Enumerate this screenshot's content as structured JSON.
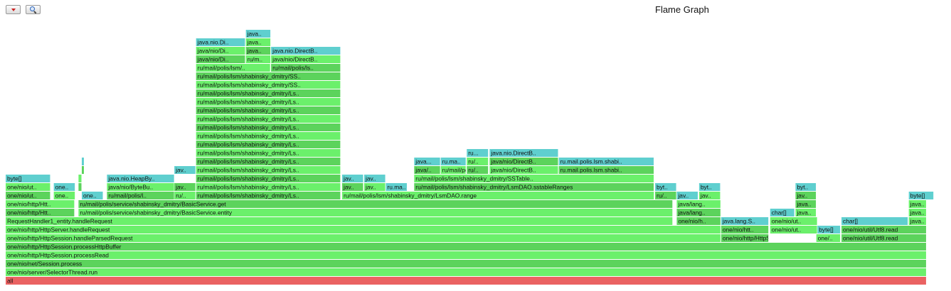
{
  "toolbar": {
    "reverse_icon": "triangle-down-icon",
    "search_icon": "magnifier-icon"
  },
  "chart_data": {
    "type": "flamegraph",
    "title": "Flame Graph",
    "units": "samples (x in % of total, w in % of total, depth = stack level)",
    "colors": {
      "root": "#ea6262",
      "java": "#5cd35c",
      "java_alt": "#6bf06b",
      "alloc": "#5fcfcf",
      "light": "#79f779"
    },
    "frames": [
      {
        "d": 0,
        "x": 0.0,
        "w": 98.4,
        "t": "all",
        "c": "root"
      },
      {
        "d": 1,
        "x": 0.0,
        "w": 98.4,
        "t": "one/nio/server/SelectorThread.run",
        "c": "java_alt"
      },
      {
        "d": 2,
        "x": 0.0,
        "w": 98.4,
        "t": "one/nio/net/Session.process",
        "c": "java"
      },
      {
        "d": 3,
        "x": 0.0,
        "w": 98.4,
        "t": "one/nio/http/HttpSession.processRead",
        "c": "java_alt"
      },
      {
        "d": 4,
        "x": 0.0,
        "w": 98.4,
        "t": "one/nio/http/HttpSession.processHttpBuffer",
        "c": "java"
      },
      {
        "d": 5,
        "x": 0.0,
        "w": 76.43,
        "t": "one/nio/http/HttpSession.handleParsedRequest",
        "c": "java_alt"
      },
      {
        "d": 5,
        "x": 76.43,
        "w": 5.12,
        "t": "one/nio/http/HttpSession..",
        "c": "java"
      },
      {
        "d": 5,
        "x": 86.6,
        "w": 2.62,
        "t": "one/..",
        "c": "java_alt"
      },
      {
        "d": 5,
        "x": 89.29,
        "w": 9.11,
        "t": "one/nio/util/Utf8.read",
        "c": "java"
      },
      {
        "d": 6,
        "x": 0.0,
        "w": 76.43,
        "t": "one/nio/http/HttpServer.handleRequest",
        "c": "java_alt"
      },
      {
        "d": 6,
        "x": 76.43,
        "w": 5.12,
        "t": "one/nio/htt..",
        "c": "java"
      },
      {
        "d": 6,
        "x": 81.67,
        "w": 5.08,
        "t": "one/nio/ut..",
        "c": "java_alt"
      },
      {
        "d": 6,
        "x": 86.72,
        "w": 2.5,
        "t": "byte[]",
        "c": "alloc"
      },
      {
        "d": 6,
        "x": 89.29,
        "w": 9.11,
        "t": "one/nio/util/Utf8.read",
        "c": "java"
      },
      {
        "d": 7,
        "x": 0.0,
        "w": 71.3,
        "t": "RequestHandler1_entity.handleRequest",
        "c": "java_alt"
      },
      {
        "d": 7,
        "x": 71.69,
        "w": 4.74,
        "t": "one/nio/h..",
        "c": "java"
      },
      {
        "d": 7,
        "x": 76.43,
        "w": 5.12,
        "t": "java.lang.S..",
        "c": "alloc"
      },
      {
        "d": 7,
        "x": 81.67,
        "w": 5.08,
        "t": "one/nio/ut..",
        "c": "java_alt"
      },
      {
        "d": 7,
        "x": 89.29,
        "w": 7.15,
        "t": "char[]",
        "c": "alloc"
      },
      {
        "d": 7,
        "x": 96.48,
        "w": 1.92,
        "t": "java..",
        "c": "java_alt"
      },
      {
        "d": 8,
        "x": 0.0,
        "w": 7.4,
        "t": "one/nio/http/Htt..",
        "c": "java"
      },
      {
        "d": 8,
        "x": 7.78,
        "w": 63.52,
        "t": "ru/mail/polis/service/shabinsky_dmitry/BasicService.entity",
        "c": "java_alt"
      },
      {
        "d": 8,
        "x": 71.69,
        "w": 4.74,
        "t": "java/lang..",
        "c": "java"
      },
      {
        "d": 8,
        "x": 81.67,
        "w": 2.65,
        "t": "char[]",
        "c": "alloc"
      },
      {
        "d": 8,
        "x": 84.38,
        "w": 2.25,
        "t": "java..",
        "c": "java_alt"
      },
      {
        "d": 8,
        "x": 96.48,
        "w": 1.92,
        "t": "java..",
        "c": "java_alt"
      },
      {
        "d": 9,
        "x": 0.0,
        "w": 7.4,
        "t": "one/nio/http/Htt..",
        "c": "java_alt"
      },
      {
        "d": 9,
        "x": 7.78,
        "w": 63.52,
        "t": "ru/mail/polis/service/shabinsky_dmitry/BasicService.get",
        "c": "java"
      },
      {
        "d": 9,
        "x": 71.69,
        "w": 4.74,
        "t": "java/lang..",
        "c": "java_alt"
      },
      {
        "d": 9,
        "x": 84.38,
        "w": 2.25,
        "t": "java..",
        "c": "java"
      },
      {
        "d": 9,
        "x": 96.48,
        "w": 1.92,
        "t": "java..",
        "c": "java_alt"
      },
      {
        "d": 10,
        "x": 0.0,
        "w": 4.82,
        "t": "one/nio/ut..",
        "c": "java"
      },
      {
        "d": 10,
        "x": 5.14,
        "w": 2.32,
        "t": "one..",
        "c": "java_alt"
      },
      {
        "d": 10,
        "x": 8.13,
        "w": 2.32,
        "t": "one..",
        "c": "alloc"
      },
      {
        "d": 10,
        "x": 10.82,
        "w": 7.24,
        "t": "ru/mail/polis/l..",
        "c": "java"
      },
      {
        "d": 10,
        "x": 18.02,
        "w": 2.32,
        "t": "ru/..",
        "c": "java_alt"
      },
      {
        "d": 10,
        "x": 20.34,
        "w": 15.48,
        "t": "ru/mail/polis/lsm/shabinsky_dmitry/Ls..",
        "c": "java"
      },
      {
        "d": 10,
        "x": 35.94,
        "w": 33.38,
        "t": "ru/mail/polis/lsm/shabinsky_dmitry/LsmDAO.range",
        "c": "java_alt"
      },
      {
        "d": 10,
        "x": 69.38,
        "w": 2.32,
        "t": "ru/..",
        "c": "java"
      },
      {
        "d": 10,
        "x": 71.69,
        "w": 2.32,
        "t": "jav..",
        "c": "alloc"
      },
      {
        "d": 10,
        "x": 74.08,
        "w": 2.32,
        "t": "jav..",
        "c": "java_alt"
      },
      {
        "d": 10,
        "x": 84.38,
        "w": 2.25,
        "t": "jav..",
        "c": "java"
      },
      {
        "d": 10,
        "x": 96.48,
        "w": 2.7,
        "t": "byte[]",
        "c": "alloc"
      },
      {
        "d": 11,
        "x": 0.0,
        "w": 4.82,
        "t": "one/nio/ut..",
        "c": "java_alt"
      },
      {
        "d": 11,
        "x": 5.14,
        "w": 2.32,
        "t": "one..",
        "c": "alloc"
      },
      {
        "d": 11,
        "x": 7.78,
        "w": 0.39,
        "t": "",
        "c": "java"
      },
      {
        "d": 11,
        "x": 10.82,
        "w": 7.24,
        "t": "java/nio/ByteBu..",
        "c": "java_alt"
      },
      {
        "d": 11,
        "x": 18.02,
        "w": 2.32,
        "t": "jav..",
        "c": "java"
      },
      {
        "d": 11,
        "x": 20.34,
        "w": 15.48,
        "t": "ru/mail/polis/lsm/shabinsky_dmitry/Ls..",
        "c": "java_alt"
      },
      {
        "d": 11,
        "x": 35.94,
        "w": 2.32,
        "t": "jav..",
        "c": "java"
      },
      {
        "d": 11,
        "x": 38.3,
        "w": 2.32,
        "t": "jav..",
        "c": "java_alt"
      },
      {
        "d": 11,
        "x": 40.61,
        "w": 2.32,
        "t": "ru.ma..",
        "c": "alloc"
      },
      {
        "d": 11,
        "x": 43.64,
        "w": 25.66,
        "t": "ru/mail/polis/lsm/shabinsky_dmitry/LsmDAO.sstableRanges",
        "c": "java"
      },
      {
        "d": 11,
        "x": 69.38,
        "w": 2.32,
        "t": "byt..",
        "c": "alloc"
      },
      {
        "d": 11,
        "x": 74.08,
        "w": 2.32,
        "t": "byt..",
        "c": "alloc"
      },
      {
        "d": 11,
        "x": 84.38,
        "w": 2.25,
        "t": "byt..",
        "c": "alloc"
      },
      {
        "d": 12,
        "x": 0.0,
        "w": 4.82,
        "t": "byte[]",
        "c": "alloc"
      },
      {
        "d": 12,
        "x": 7.78,
        "w": 0.39,
        "t": "",
        "c": "java_alt"
      },
      {
        "d": 12,
        "x": 10.82,
        "w": 7.24,
        "t": "java.nio.HeapBy..",
        "c": "alloc"
      },
      {
        "d": 12,
        "x": 20.34,
        "w": 15.48,
        "t": "ru/mail/polis/lsm/shabinsky_dmitry/Ls..",
        "c": "java"
      },
      {
        "d": 12,
        "x": 35.94,
        "w": 2.32,
        "t": "jav..",
        "c": "alloc"
      },
      {
        "d": 12,
        "x": 38.3,
        "w": 2.32,
        "t": "jav..",
        "c": "alloc"
      },
      {
        "d": 12,
        "x": 43.64,
        "w": 25.66,
        "t": "ru/mail/polis/lsm/shabinsky_dmitry/SSTable..",
        "c": "java_alt"
      },
      {
        "d": 13,
        "x": 8.13,
        "w": 0.3,
        "t": "",
        "c": "java"
      },
      {
        "d": 13,
        "x": 18.02,
        "w": 2.32,
        "t": "jav..",
        "c": "alloc"
      },
      {
        "d": 13,
        "x": 20.34,
        "w": 15.48,
        "t": "ru/mail/polis/lsm/shabinsky_dmitry/Ls..",
        "c": "java_alt"
      },
      {
        "d": 13,
        "x": 43.64,
        "w": 2.84,
        "t": "java/..",
        "c": "java"
      },
      {
        "d": 13,
        "x": 46.48,
        "w": 2.74,
        "t": "ru/mail/poi..",
        "c": "java_alt"
      },
      {
        "d": 13,
        "x": 49.26,
        "w": 2.35,
        "t": "ru/..",
        "c": "java"
      },
      {
        "d": 13,
        "x": 51.7,
        "w": 7.38,
        "t": "java/nio/DirectB..",
        "c": "java_alt"
      },
      {
        "d": 13,
        "x": 59.09,
        "w": 10.21,
        "t": "ru.mail.polis.lsm.shabi..",
        "c": "java"
      },
      {
        "d": 14,
        "x": 8.13,
        "w": 0.3,
        "t": "",
        "c": "alloc"
      },
      {
        "d": 14,
        "x": 20.34,
        "w": 15.48,
        "t": "ru/mail/polis/lsm/shabinsky_dmitry/Ls..",
        "c": "java"
      },
      {
        "d": 14,
        "x": 43.64,
        "w": 2.84,
        "t": "java...",
        "c": "alloc"
      },
      {
        "d": 14,
        "x": 46.48,
        "w": 2.74,
        "t": "ru.ma..",
        "c": "alloc"
      },
      {
        "d": 14,
        "x": 49.26,
        "w": 2.35,
        "t": "ru/..",
        "c": "java_alt"
      },
      {
        "d": 14,
        "x": 51.7,
        "w": 7.38,
        "t": "java/nio/DirectB..",
        "c": "java"
      },
      {
        "d": 14,
        "x": 59.09,
        "w": 10.21,
        "t": "ru.mail.polis.lsm.shabi..",
        "c": "alloc"
      },
      {
        "d": 15,
        "x": 20.34,
        "w": 15.48,
        "t": "ru/mail/polis/lsm/shabinsky_dmitry/Ls..",
        "c": "java_alt"
      },
      {
        "d": 15,
        "x": 49.26,
        "w": 2.35,
        "t": "ru...",
        "c": "alloc"
      },
      {
        "d": 15,
        "x": 51.7,
        "w": 7.38,
        "t": "java.nio.DirectB..",
        "c": "alloc"
      },
      {
        "d": 16,
        "x": 20.34,
        "w": 15.48,
        "t": "ru/mail/polis/lsm/shabinsky_dmitry/Ls..",
        "c": "java"
      },
      {
        "d": 17,
        "x": 20.34,
        "w": 15.48,
        "t": "ru/mail/polis/lsm/shabinsky_dmitry/Ls..",
        "c": "java_alt"
      },
      {
        "d": 18,
        "x": 20.34,
        "w": 15.48,
        "t": "ru/mail/polis/lsm/shabinsky_dmitry/Ls..",
        "c": "java"
      },
      {
        "d": 19,
        "x": 20.34,
        "w": 15.48,
        "t": "ru/mail/polis/lsm/shabinsky_dmitry/Ls..",
        "c": "java_alt"
      },
      {
        "d": 20,
        "x": 20.34,
        "w": 15.48,
        "t": "ru/mail/polis/lsm/shabinsky_dmitry/Ls..",
        "c": "java"
      },
      {
        "d": 21,
        "x": 20.34,
        "w": 15.48,
        "t": "ru/mail/polis/lsm/shabinsky_dmitry/Ls..",
        "c": "java_alt"
      },
      {
        "d": 22,
        "x": 20.34,
        "w": 15.48,
        "t": "ru/mail/polis/lsm/shabinsky_dmitry/Ls..",
        "c": "java"
      },
      {
        "d": 23,
        "x": 20.34,
        "w": 15.48,
        "t": "ru/mail/polis/lsm/shabinsky_dmitry/SS..",
        "c": "java_alt"
      },
      {
        "d": 24,
        "x": 20.34,
        "w": 15.48,
        "t": "ru/mail/polis/lsm/shabinsky_dmitry/SS..",
        "c": "java"
      },
      {
        "d": 25,
        "x": 20.34,
        "w": 7.98,
        "t": "ru/mail/polis/lsm/..",
        "c": "java_alt"
      },
      {
        "d": 25,
        "x": 28.35,
        "w": 7.47,
        "t": "ru/mail/polis/ls..",
        "c": "java"
      },
      {
        "d": 26,
        "x": 20.34,
        "w": 5.3,
        "t": "java/nio/Di..",
        "c": "java"
      },
      {
        "d": 26,
        "x": 25.66,
        "w": 2.69,
        "t": "ru/m..",
        "c": "java_alt"
      },
      {
        "d": 26,
        "x": 28.35,
        "w": 7.47,
        "t": "java/nio/DirectB..",
        "c": "java_alt"
      },
      {
        "d": 27,
        "x": 20.34,
        "w": 5.3,
        "t": "java/nio/Di..",
        "c": "java_alt"
      },
      {
        "d": 27,
        "x": 25.66,
        "w": 2.69,
        "t": "java..",
        "c": "java"
      },
      {
        "d": 27,
        "x": 28.35,
        "w": 7.47,
        "t": "java.nio.DirectB..",
        "c": "alloc"
      },
      {
        "d": 28,
        "x": 20.34,
        "w": 5.3,
        "t": "java.nio.Di..",
        "c": "alloc"
      },
      {
        "d": 28,
        "x": 25.66,
        "w": 2.69,
        "t": "java..",
        "c": "java_alt"
      },
      {
        "d": 29,
        "x": 25.66,
        "w": 2.69,
        "t": "java..",
        "c": "alloc"
      }
    ]
  }
}
